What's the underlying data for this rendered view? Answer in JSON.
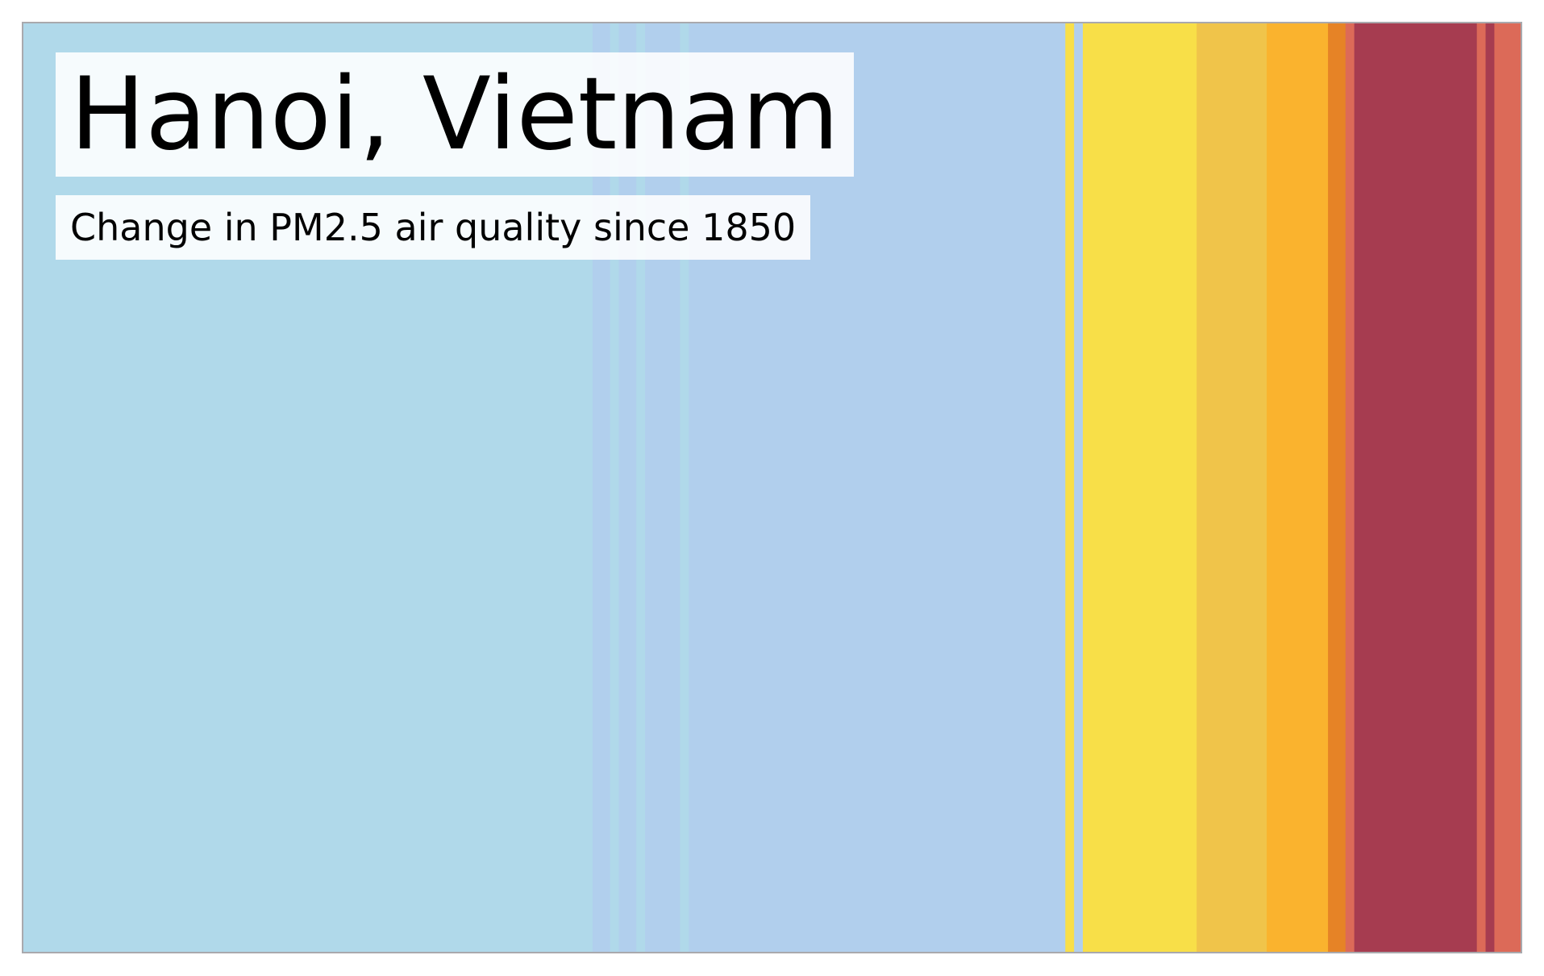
{
  "chart_data": {
    "type": "bar",
    "title": "Hanoi, Vietnam",
    "subtitle": "Change in PM2.5 air quality since 1850",
    "x_range": [
      1850,
      2021
    ],
    "colors": {
      "frame_border": "#a9a9ad",
      "label_background": "#ffffff"
    },
    "segments": [
      {
        "from": 1850,
        "to": 1915,
        "color": "#b0d9ea"
      },
      {
        "from": 1915,
        "to": 1917,
        "color": "#b1cfed"
      },
      {
        "from": 1917,
        "to": 1918,
        "color": "#b0d9ea"
      },
      {
        "from": 1918,
        "to": 1920,
        "color": "#b1cfed"
      },
      {
        "from": 1920,
        "to": 1921,
        "color": "#b0d9ea"
      },
      {
        "from": 1921,
        "to": 1925,
        "color": "#b1cfed"
      },
      {
        "from": 1925,
        "to": 1926,
        "color": "#b0d9ea"
      },
      {
        "from": 1926,
        "to": 1969,
        "color": "#b1cfed"
      },
      {
        "from": 1969,
        "to": 1970,
        "color": "#f8df48"
      },
      {
        "from": 1970,
        "to": 1971,
        "color": "#b1cfed"
      },
      {
        "from": 1971,
        "to": 1984,
        "color": "#f8df48"
      },
      {
        "from": 1984,
        "to": 1992,
        "color": "#f0c44a"
      },
      {
        "from": 1992,
        "to": 1999,
        "color": "#fab32e"
      },
      {
        "from": 1999,
        "to": 2001,
        "color": "#e68326"
      },
      {
        "from": 2001,
        "to": 2002,
        "color": "#dc6a58"
      },
      {
        "from": 2002,
        "to": 2016,
        "color": "#a63c50"
      },
      {
        "from": 2016,
        "to": 2017,
        "color": "#dc6a58"
      },
      {
        "from": 2017,
        "to": 2018,
        "color": "#a63c50"
      },
      {
        "from": 2018,
        "to": 2021,
        "color": "#dc6a58"
      }
    ]
  }
}
